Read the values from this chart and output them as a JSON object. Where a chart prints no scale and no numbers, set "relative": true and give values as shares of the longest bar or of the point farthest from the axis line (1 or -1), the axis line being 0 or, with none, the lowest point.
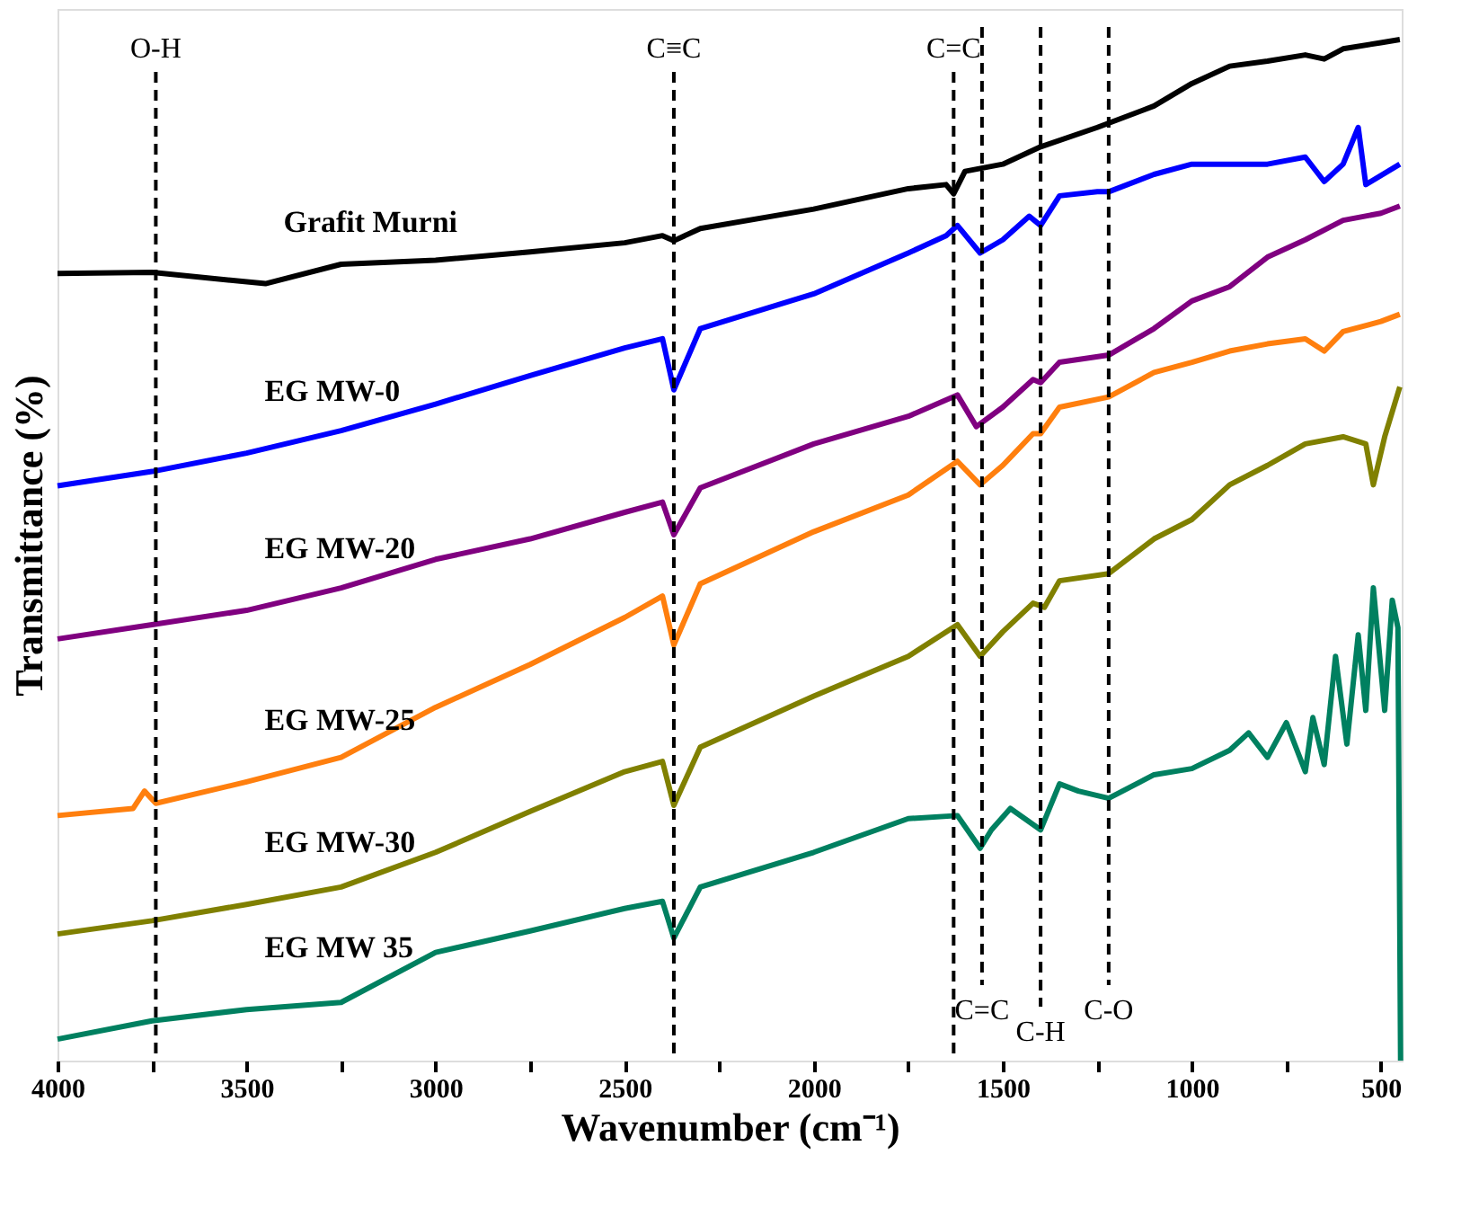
{
  "chart_data": {
    "type": "line",
    "relative": true,
    "xlabel": "Wavenumber (cm⁻¹)",
    "ylabel": "Transmittance (%)",
    "xlim": [
      4000,
      445
    ],
    "xticks": [
      4000,
      {
        "value": 3750,
        "label": null
      },
      3500,
      {
        "value": 3250,
        "label": null
      },
      3000,
      {
        "value": 2750,
        "label": null
      },
      2500,
      {
        "value": 2250,
        "label": null
      },
      2000,
      {
        "value": 1750,
        "label": null
      },
      1500,
      {
        "value": 1250,
        "label": null
      },
      1000,
      {
        "value": 750,
        "label": null
      },
      500
    ],
    "tick_labels": "x",
    "grid": false,
    "legend": false,
    "marker": "none",
    "line_style": "solid",
    "series": [
      {
        "name": "Grafit Murni",
        "color": "#000000",
        "x": [
          4000,
          3750,
          3450,
          3250,
          3000,
          2750,
          2500,
          2400,
          2370,
          2300,
          2000,
          1750,
          1650,
          1630,
          1600,
          1500,
          1400,
          1250,
          1100,
          1000,
          900,
          800,
          700,
          650,
          600,
          500,
          450
        ],
        "values": [
          0.771,
          0.772,
          0.761,
          0.78,
          0.784,
          0.792,
          0.801,
          0.808,
          0.803,
          0.815,
          0.834,
          0.854,
          0.858,
          0.849,
          0.871,
          0.878,
          0.895,
          0.914,
          0.935,
          0.957,
          0.974,
          0.979,
          0.985,
          0.981,
          0.991,
          0.997,
          1.0
        ]
      },
      {
        "name": "EG  MW-0",
        "color": "#0000ff",
        "x": [
          4000,
          3750,
          3500,
          3250,
          3000,
          2750,
          2500,
          2400,
          2370,
          2300,
          2000,
          1750,
          1650,
          1620,
          1560,
          1500,
          1430,
          1400,
          1350,
          1250,
          1220,
          1100,
          1000,
          900,
          800,
          700,
          650,
          600,
          560,
          540,
          450
        ],
        "values": [
          0.563,
          0.577,
          0.595,
          0.617,
          0.643,
          0.671,
          0.698,
          0.707,
          0.657,
          0.717,
          0.751,
          0.791,
          0.808,
          0.818,
          0.791,
          0.804,
          0.827,
          0.818,
          0.847,
          0.851,
          0.851,
          0.868,
          0.878,
          0.878,
          0.878,
          0.885,
          0.861,
          0.878,
          0.914,
          0.858,
          0.878
        ]
      },
      {
        "name": "EG  MW-20",
        "color": "#800080",
        "x": [
          4000,
          3750,
          3500,
          3250,
          3000,
          2750,
          2500,
          2400,
          2370,
          2300,
          2000,
          1750,
          1620,
          1570,
          1500,
          1420,
          1400,
          1350,
          1220,
          1100,
          1000,
          900,
          800,
          700,
          600,
          500,
          450
        ],
        "values": [
          0.413,
          0.427,
          0.441,
          0.463,
          0.491,
          0.511,
          0.537,
          0.547,
          0.515,
          0.561,
          0.604,
          0.631,
          0.652,
          0.621,
          0.64,
          0.667,
          0.664,
          0.684,
          0.691,
          0.717,
          0.744,
          0.758,
          0.787,
          0.804,
          0.823,
          0.83,
          0.837
        ]
      },
      {
        "name": "EG MW-25",
        "color": "#ff7f0e",
        "x": [
          4000,
          3800,
          3770,
          3740,
          3500,
          3250,
          3000,
          2750,
          2500,
          2400,
          2370,
          2300,
          2000,
          1750,
          1620,
          1560,
          1500,
          1420,
          1400,
          1350,
          1220,
          1100,
          1000,
          900,
          800,
          700,
          650,
          600,
          500,
          450
        ],
        "values": [
          0.24,
          0.247,
          0.264,
          0.252,
          0.273,
          0.297,
          0.346,
          0.388,
          0.434,
          0.455,
          0.407,
          0.467,
          0.518,
          0.554,
          0.587,
          0.564,
          0.583,
          0.614,
          0.614,
          0.64,
          0.65,
          0.674,
          0.684,
          0.695,
          0.702,
          0.707,
          0.695,
          0.714,
          0.724,
          0.731
        ]
      },
      {
        "name": "EG  MW-30",
        "color": "#808000",
        "x": [
          4000,
          3750,
          3500,
          3250,
          3000,
          2750,
          2500,
          2400,
          2370,
          2300,
          2000,
          1750,
          1620,
          1560,
          1500,
          1420,
          1390,
          1350,
          1220,
          1100,
          1000,
          900,
          800,
          700,
          600,
          540,
          520,
          490,
          450
        ],
        "values": [
          0.124,
          0.137,
          0.153,
          0.17,
          0.204,
          0.244,
          0.283,
          0.293,
          0.25,
          0.307,
          0.357,
          0.396,
          0.427,
          0.396,
          0.42,
          0.448,
          0.444,
          0.47,
          0.477,
          0.511,
          0.53,
          0.564,
          0.583,
          0.604,
          0.611,
          0.604,
          0.564,
          0.611,
          0.66
        ]
      },
      {
        "name": "EG  MW 35",
        "color": "#008060",
        "x": [
          4000,
          3750,
          3500,
          3250,
          3000,
          2750,
          2500,
          2400,
          2370,
          2300,
          2000,
          1750,
          1620,
          1560,
          1530,
          1480,
          1400,
          1350,
          1300,
          1220,
          1100,
          1000,
          900,
          850,
          800,
          750,
          700,
          680,
          650,
          620,
          590,
          560,
          540,
          520,
          490,
          470,
          455,
          448
        ],
        "values": [
          0.021,
          0.039,
          0.05,
          0.057,
          0.106,
          0.127,
          0.149,
          0.156,
          0.12,
          0.17,
          0.204,
          0.237,
          0.24,
          0.208,
          0.226,
          0.247,
          0.226,
          0.271,
          0.264,
          0.257,
          0.28,
          0.286,
          0.304,
          0.321,
          0.297,
          0.331,
          0.283,
          0.336,
          0.29,
          0.396,
          0.31,
          0.417,
          0.343,
          0.463,
          0.343,
          0.451,
          0.424,
          0.0
        ]
      }
    ],
    "ref_lines": [
      {
        "axis": "x",
        "value": 3740,
        "label": "O-H",
        "color": "#000000",
        "line_style": "dashed"
      },
      {
        "axis": "x",
        "value": 2370,
        "label": "C≡C",
        "color": "#000000",
        "line_style": "dashed"
      },
      {
        "axis": "x",
        "value": 1630,
        "label": "C=C",
        "color": "#000000",
        "line_style": "dashed"
      },
      {
        "axis": "x",
        "value": 1555,
        "label": "C=C",
        "color": "#000000",
        "line_style": "dashed"
      },
      {
        "axis": "x",
        "value": 1400,
        "label": "C-H",
        "color": "#000000",
        "line_style": "dashed"
      },
      {
        "axis": "x",
        "value": 1220,
        "label": "C-O",
        "color": "#000000",
        "line_style": "dashed"
      }
    ]
  }
}
